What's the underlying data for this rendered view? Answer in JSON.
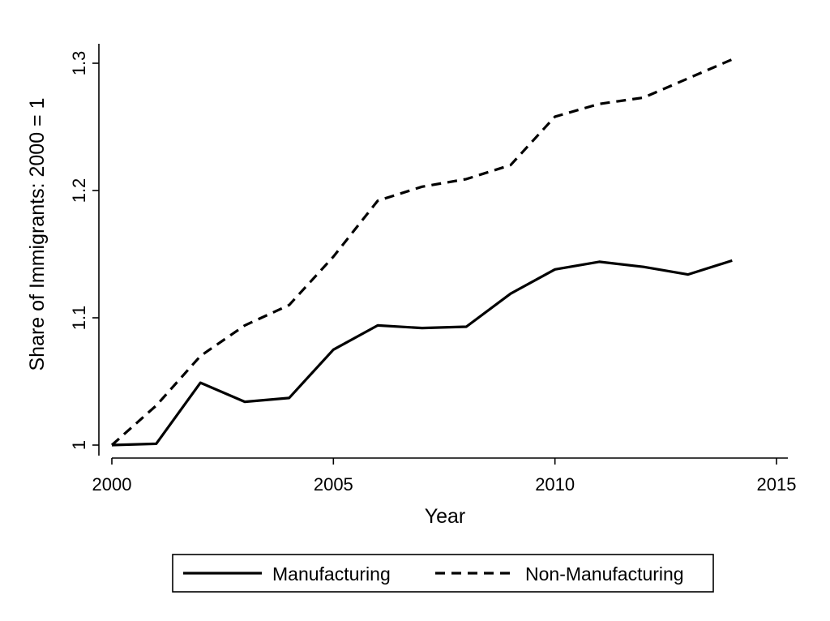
{
  "chart_data": {
    "type": "line",
    "xlabel": "Year",
    "ylabel": "Share of Immigrants: 2000 = 1",
    "xlim": [
      2000,
      2015
    ],
    "ylim": [
      1.0,
      1.3
    ],
    "x_ticks": [
      "2000",
      "2005",
      "2010",
      "2015"
    ],
    "y_ticks": [
      "1",
      "1.1",
      "1.2",
      "1.3"
    ],
    "grid": false,
    "legend_position": "bottom",
    "x": [
      2000,
      2001,
      2002,
      2003,
      2004,
      2005,
      2006,
      2007,
      2008,
      2009,
      2010,
      2011,
      2012,
      2013,
      2014
    ],
    "series": [
      {
        "name": "Manufacturing",
        "style": "solid",
        "color": "#000000",
        "values": [
          1.0,
          1.001,
          1.049,
          1.034,
          1.037,
          1.075,
          1.094,
          1.092,
          1.093,
          1.119,
          1.138,
          1.144,
          1.14,
          1.134,
          1.145
        ]
      },
      {
        "name": "Non-Manufacturing",
        "style": "dashed",
        "color": "#000000",
        "values": [
          1.0,
          1.031,
          1.07,
          1.094,
          1.11,
          1.148,
          1.192,
          1.203,
          1.209,
          1.22,
          1.258,
          1.268,
          1.273,
          1.288,
          1.303
        ]
      }
    ]
  }
}
